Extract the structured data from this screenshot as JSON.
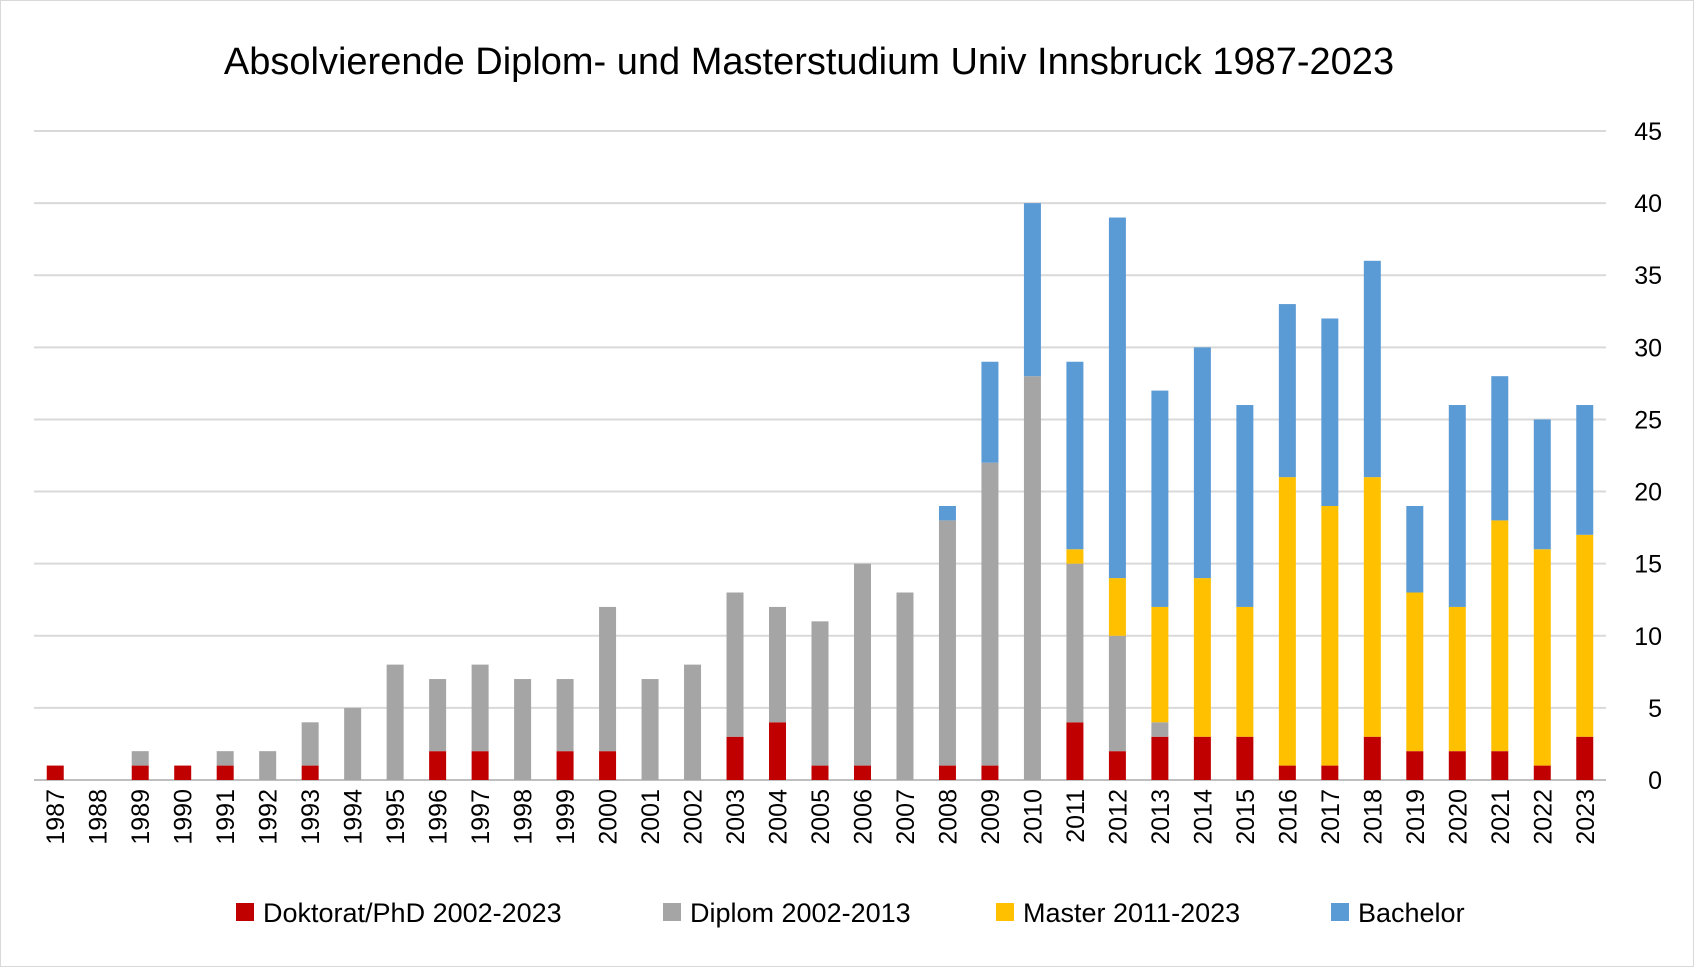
{
  "chart_data": {
    "type": "bar",
    "stacked": true,
    "title": "Absolvierende Diplom- und Masterstudium Univ Innsbruck 1987-2023",
    "xlabel": "",
    "ylabel": "",
    "ylim": [
      0,
      45
    ],
    "ytick_step": 5,
    "yaxis_side": "right",
    "grid": true,
    "legend_position": "bottom",
    "categories": [
      "1987",
      "1988",
      "1989",
      "1990",
      "1991",
      "1992",
      "1993",
      "1994",
      "1995",
      "1996",
      "1997",
      "1998",
      "1999",
      "2000",
      "2001",
      "2002",
      "2003",
      "2004",
      "2005",
      "2006",
      "2007",
      "2008",
      "2009",
      "2010",
      "2011",
      "2012",
      "2013",
      "2014",
      "2015",
      "2016",
      "2017",
      "2018",
      "2019",
      "2020",
      "2021",
      "2022",
      "2023"
    ],
    "series": [
      {
        "name": "Doktorat/PhD 2002-2023",
        "color": "#c00000",
        "values": [
          1,
          0,
          1,
          1,
          1,
          0,
          1,
          0,
          0,
          2,
          2,
          0,
          2,
          2,
          0,
          0,
          3,
          4,
          1,
          1,
          0,
          1,
          1,
          0,
          4,
          2,
          3,
          3,
          3,
          1,
          1,
          3,
          2,
          2,
          2,
          1,
          3
        ]
      },
      {
        "name": "Diplom 2002-2013",
        "color": "#a5a5a5",
        "values": [
          0,
          0,
          1,
          0,
          1,
          2,
          3,
          5,
          8,
          5,
          6,
          7,
          5,
          10,
          7,
          8,
          10,
          8,
          10,
          14,
          13,
          17,
          21,
          28,
          11,
          8,
          1,
          0,
          0,
          0,
          0,
          0,
          0,
          0,
          0,
          0,
          0
        ]
      },
      {
        "name": "Master 2011-2023",
        "color": "#ffc000",
        "values": [
          0,
          0,
          0,
          0,
          0,
          0,
          0,
          0,
          0,
          0,
          0,
          0,
          0,
          0,
          0,
          0,
          0,
          0,
          0,
          0,
          0,
          0,
          0,
          0,
          1,
          4,
          8,
          11,
          9,
          20,
          18,
          18,
          11,
          10,
          16,
          15,
          14
        ]
      },
      {
        "name": "Bachelor",
        "color": "#5b9bd5",
        "values": [
          0,
          0,
          0,
          0,
          0,
          0,
          0,
          0,
          0,
          0,
          0,
          0,
          0,
          0,
          0,
          0,
          0,
          0,
          0,
          0,
          0,
          1,
          7,
          12,
          13,
          25,
          15,
          16,
          14,
          12,
          13,
          15,
          6,
          14,
          10,
          9,
          9
        ]
      }
    ]
  }
}
